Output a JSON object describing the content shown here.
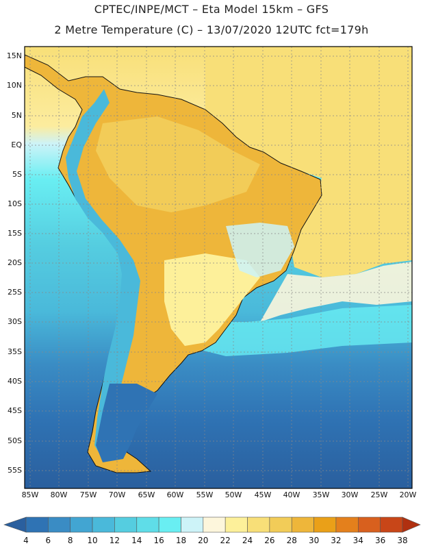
{
  "header": {
    "line1": "CPTEC/INPE/MCT –  Eta Model 15km – GFS",
    "line2": "2 Metre Temperature (C) – 13/07/2020 12UTC fct=179h"
  },
  "axes": {
    "lat_labels": [
      "15N",
      "10N",
      "5N",
      "EQ",
      "5S",
      "10S",
      "15S",
      "20S",
      "25S",
      "30S",
      "35S",
      "40S",
      "45S",
      "50S",
      "55S"
    ],
    "lon_labels": [
      "85W",
      "80W",
      "75W",
      "70W",
      "65W",
      "60W",
      "55W",
      "50W",
      "45W",
      "40W",
      "35W",
      "30W",
      "25W",
      "20W"
    ]
  },
  "colorbar": {
    "labels": [
      "4",
      "6",
      "8",
      "10",
      "12",
      "14",
      "16",
      "18",
      "20",
      "22",
      "24",
      "26",
      "28",
      "30",
      "32",
      "34",
      "36",
      "38"
    ],
    "colors": [
      "#2a5f9e",
      "#2f73b4",
      "#3a8cc4",
      "#42a5d2",
      "#4ab9da",
      "#55cde0",
      "#5fdde8",
      "#69eef2",
      "#cdf3f8",
      "#fdf6dc",
      "#fdf09a",
      "#f8df78",
      "#f2cc58",
      "#eeb63a",
      "#eaa018",
      "#e4801c",
      "#d8601e",
      "#c84618",
      "#b03010"
    ]
  }
}
